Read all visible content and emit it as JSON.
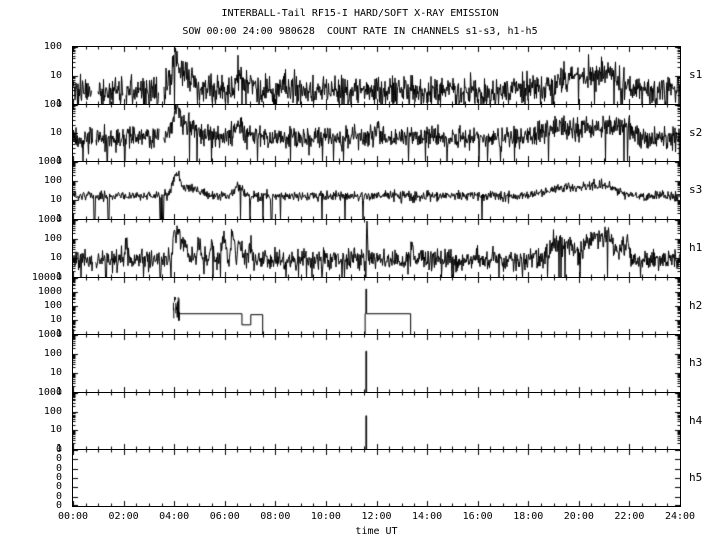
{
  "title": "INTERBALL-Tail RF15-I HARD/SOFT X-RAY EMISSION",
  "subtitle": "SOW 00:00 24:00 980628  COUNT RATE IN CHANNELS s1-s3, h1-h5",
  "xlabel": "time UT",
  "colors": {
    "fg": "#000000",
    "bg": "#ffffff"
  },
  "chart_data": {
    "type": "line",
    "x_range_hours": [
      0,
      24
    ],
    "x_major_tick_hours": 2,
    "x_minor_tick_hours": 0.5,
    "x_ticks": [
      "00:00",
      "02:00",
      "04:00",
      "06:00",
      "08:00",
      "10:00",
      "12:00",
      "14:00",
      "16:00",
      "18:00",
      "20:00",
      "22:00",
      "24:00"
    ],
    "y_scale": "log",
    "panels": [
      {
        "label": "s1",
        "ylim": [
          1,
          100
        ],
        "log_minor": true,
        "yticks": [
          {
            "label": "100",
            "f": 0
          },
          {
            "label": "10",
            "f": 0.5
          },
          {
            "label": "1",
            "f": 1
          }
        ],
        "ops": [
          {
            "op": "noise",
            "t": [
              0,
              24
            ],
            "base": 3,
            "sigma": 0.27,
            "dens": 2,
            "dropout": 0.05,
            "drop_to": 1,
            "gaps": [
              [
                0.75,
                0.98
              ],
              [
                1.98,
                2.08
              ],
              [
                3.4,
                3.58
              ]
            ],
            "drops": [],
            "peaks": [
              {
                "t": 4.05,
                "a": 14,
                "w": 0.1
              },
              {
                "t": 4.3,
                "a": 3,
                "w": 0.3
              },
              {
                "t": 6.55,
                "a": 3,
                "w": 0.1
              },
              {
                "t": 7.0,
                "a": 1,
                "w": 0.15
              },
              {
                "t": 20.2,
                "a": 2.2,
                "w": 0.7
              },
              {
                "t": 21.15,
                "a": 2.6,
                "w": 0.35
              }
            ]
          }
        ]
      },
      {
        "label": "s2",
        "ylim": [
          1,
          100
        ],
        "log_minor": true,
        "yticks": [
          {
            "label": "100",
            "f": 0
          },
          {
            "label": "10",
            "f": 0.5
          },
          {
            "label": "1",
            "f": 1
          }
        ],
        "ops": [
          {
            "op": "noise",
            "t": [
              0,
              24
            ],
            "base": 7,
            "sigma": 0.2,
            "dens": 2,
            "dropout": 0.04,
            "drop_to": 1,
            "gaps": [
              [
                0.78,
                0.9
              ],
              [
                3.42,
                3.56
              ]
            ],
            "drops": [
              1.35,
              2.05
            ],
            "peaks": [
              {
                "t": 4.1,
                "a": 9,
                "w": 0.1
              },
              {
                "t": 4.4,
                "a": 2,
                "w": 0.35
              },
              {
                "t": 6.55,
                "a": 2.2,
                "w": 0.12
              },
              {
                "t": 12.0,
                "a": 1.5,
                "w": 0.05
              },
              {
                "t": 19.3,
                "a": 1.6,
                "w": 0.5
              },
              {
                "t": 20.9,
                "a": 2.2,
                "w": 0.55
              },
              {
                "t": 21.8,
                "a": 1.2,
                "w": 0.2
              }
            ]
          }
        ]
      },
      {
        "label": "s3",
        "ylim": [
          1,
          1000
        ],
        "log_minor": true,
        "yticks": [
          {
            "label": "1000",
            "f": 0
          },
          {
            "label": "100",
            "f": 0.333
          },
          {
            "label": "10",
            "f": 0.667
          },
          {
            "label": "1",
            "f": 1
          }
        ],
        "ops": [
          {
            "op": "noise",
            "t": [
              0,
              24
            ],
            "base": 16,
            "sigma": 0.13,
            "dens": 2,
            "dropout": 0.01,
            "drop_to": 1,
            "gaps": [],
            "drops": [
              0.85,
              1.4,
              3.45,
              3.56,
              7.85
            ],
            "peaks": [
              {
                "t": 4.1,
                "a": 11,
                "w": 0.1
              },
              {
                "t": 4.5,
                "a": 2,
                "w": 0.4
              },
              {
                "t": 6.55,
                "a": 2.2,
                "w": 0.15
              },
              {
                "t": 19.5,
                "a": 1.8,
                "w": 0.55
              },
              {
                "t": 20.9,
                "a": 2.4,
                "w": 0.5
              }
            ]
          }
        ]
      },
      {
        "label": "h1",
        "ylim": [
          1,
          1000
        ],
        "log_minor": true,
        "yticks": [
          {
            "label": "1000",
            "f": 0
          },
          {
            "label": "100",
            "f": 0.333
          },
          {
            "label": "10",
            "f": 0.667
          },
          {
            "label": "1",
            "f": 1
          }
        ],
        "ops": [
          {
            "op": "noise",
            "t": [
              0,
              24
            ],
            "base": 8,
            "sigma": 0.28,
            "dens": 2,
            "dropout": 0.05,
            "drop_to": 1,
            "gaps": [
              [
                0.78,
                0.88
              ]
            ],
            "drops": [
              1.3,
              3.45
            ],
            "peaks": [
              {
                "t": 2.1,
                "a": 10,
                "w": 0.03
              },
              {
                "t": 4.1,
                "a": 35,
                "w": 0.08
              },
              {
                "t": 4.35,
                "a": 8,
                "w": 0.1
              },
              {
                "t": 5.0,
                "a": 4,
                "w": 0.05
              },
              {
                "t": 5.5,
                "a": 6,
                "w": 0.05
              },
              {
                "t": 5.95,
                "a": 8,
                "w": 0.06
              },
              {
                "t": 6.3,
                "a": 16,
                "w": 0.05
              },
              {
                "t": 6.6,
                "a": 10,
                "w": 0.05
              },
              {
                "t": 7.0,
                "a": 5,
                "w": 0.05
              },
              {
                "t": 11.62,
                "a": 45,
                "w": 0.02
              },
              {
                "t": 13.4,
                "a": 5,
                "w": 0.03
              },
              {
                "t": 19.2,
                "a": 9,
                "w": 0.2
              },
              {
                "t": 19.6,
                "a": 6,
                "w": 0.15
              },
              {
                "t": 20.6,
                "a": 10,
                "w": 0.3
              },
              {
                "t": 21.05,
                "a": 13,
                "w": 0.25
              },
              {
                "t": 21.8,
                "a": 7,
                "w": 0.12
              }
            ]
          }
        ]
      },
      {
        "label": "h2",
        "ylim": [
          1,
          10000
        ],
        "log_minor": true,
        "yticks": [
          {
            "label": "10000",
            "f": 0
          },
          {
            "label": "1000",
            "f": 0.25
          },
          {
            "label": "100",
            "f": 0.5
          },
          {
            "label": "10",
            "f": 0.75
          },
          {
            "label": "1",
            "f": 1
          }
        ],
        "ops": [
          {
            "op": "blob",
            "t": [
              3.97,
              4.22
            ],
            "lo": 8,
            "hi": 500
          },
          {
            "op": "path",
            "pts": [
              [
                4.22,
                28
              ],
              [
                6.68,
                28
              ],
              [
                6.68,
                4.5
              ],
              [
                7.03,
                4.5
              ],
              [
                7.03,
                24
              ],
              [
                7.5,
                24
              ],
              [
                7.5,
                1
              ]
            ]
          },
          {
            "op": "path",
            "pts": [
              [
                11.55,
                1
              ],
              [
                11.55,
                28
              ],
              [
                11.58,
                28
              ],
              [
                11.58,
                1600
              ],
              [
                11.61,
                1600
              ],
              [
                11.61,
                28
              ],
              [
                13.35,
                28
              ],
              [
                13.35,
                1
              ]
            ]
          }
        ]
      },
      {
        "label": "h3",
        "ylim": [
          1,
          1000
        ],
        "log_minor": true,
        "yticks": [
          {
            "label": "1000",
            "f": 0
          },
          {
            "label": "100",
            "f": 0.333
          },
          {
            "label": "10",
            "f": 0.667
          },
          {
            "label": "1",
            "f": 1
          }
        ],
        "ops": [
          {
            "op": "path",
            "pts": [
              [
                11.58,
                1
              ],
              [
                11.58,
                140
              ],
              [
                11.61,
                140
              ],
              [
                11.61,
                1
              ]
            ]
          }
        ]
      },
      {
        "label": "h4",
        "ylim": [
          1,
          1000
        ],
        "log_minor": true,
        "yticks": [
          {
            "label": "1000",
            "f": 0
          },
          {
            "label": "100",
            "f": 0.333
          },
          {
            "label": "10",
            "f": 0.667
          },
          {
            "label": "1",
            "f": 1
          }
        ],
        "ops": [
          {
            "op": "path",
            "pts": [
              [
                11.58,
                1
              ],
              [
                11.58,
                60
              ],
              [
                11.61,
                60
              ],
              [
                11.61,
                1
              ]
            ]
          }
        ]
      },
      {
        "label": "h5",
        "ylim": [
          1,
          10
        ],
        "log_minor": false,
        "yticks": [
          {
            "label": "0",
            "f": 0
          },
          {
            "label": "0",
            "f": 0.167
          },
          {
            "label": "0",
            "f": 0.333
          },
          {
            "label": "0",
            "f": 0.5
          },
          {
            "label": "0",
            "f": 0.667
          },
          {
            "label": "0",
            "f": 0.833
          },
          {
            "label": "0",
            "f": 1
          }
        ],
        "ops": []
      }
    ]
  }
}
